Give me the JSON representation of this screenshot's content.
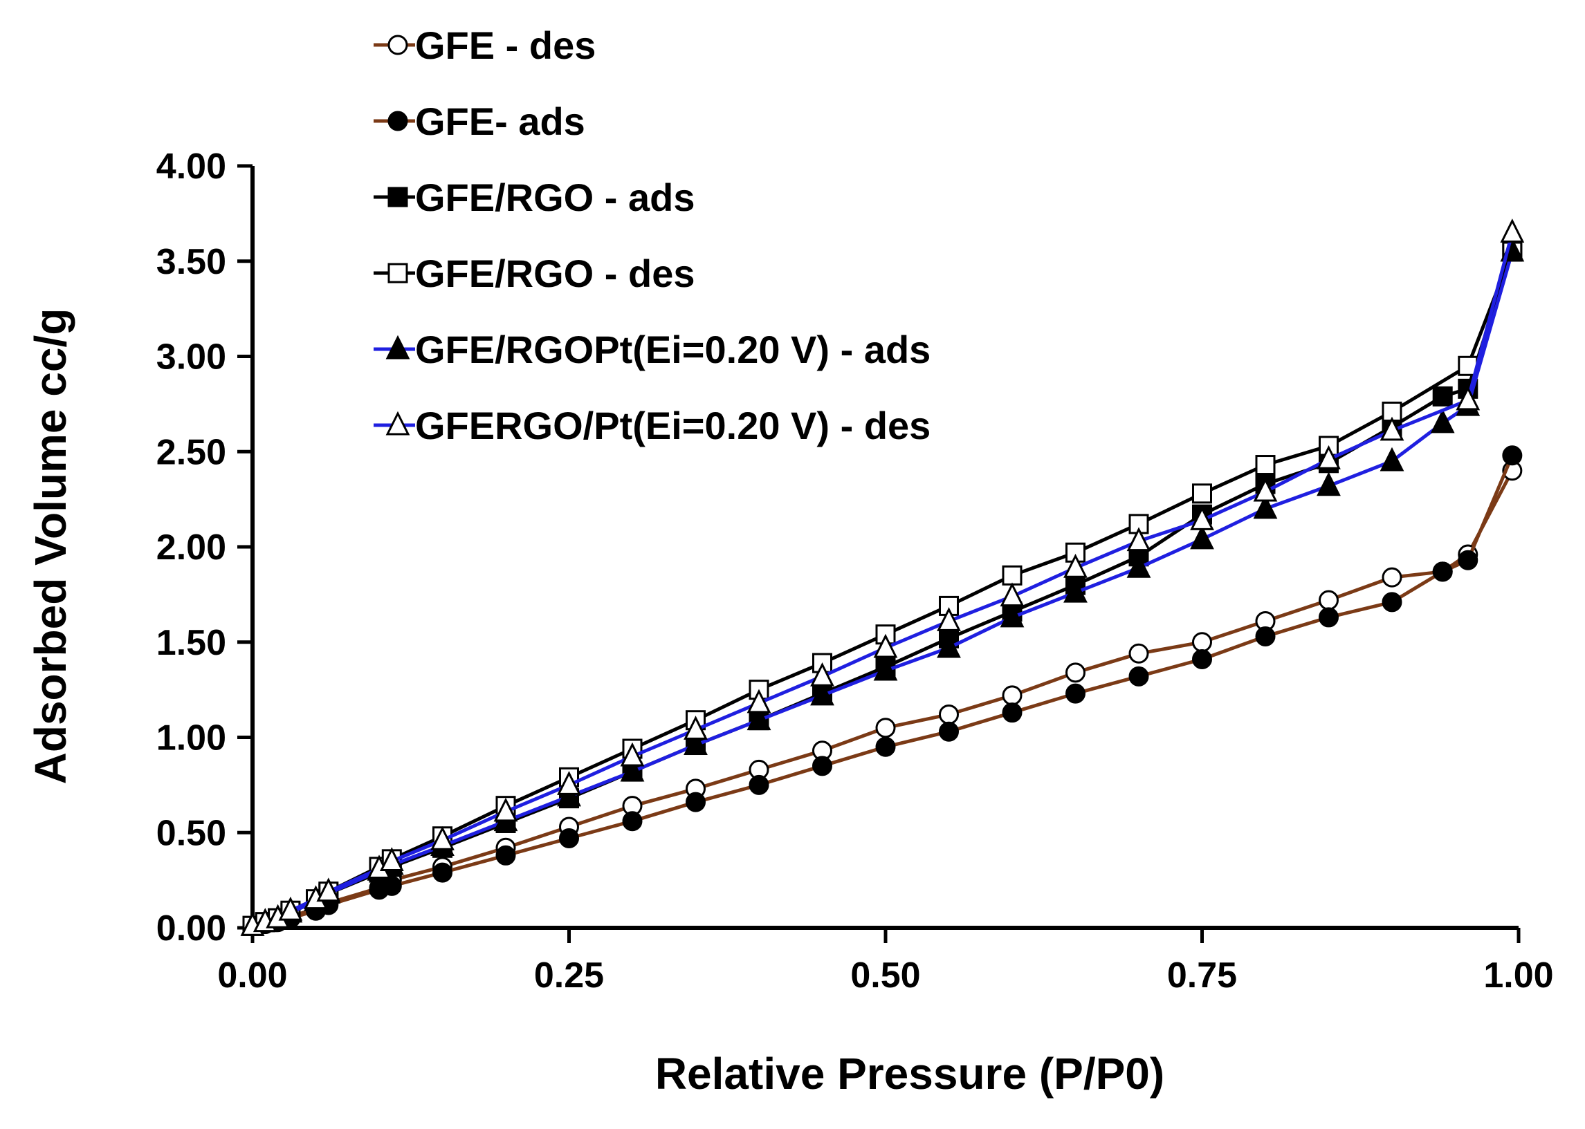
{
  "chart_data": {
    "type": "line",
    "title": "",
    "xlabel": "Relative Pressure (P/P0)",
    "ylabel": "Adsorbed Volume cc/g",
    "xlim": [
      0,
      1
    ],
    "ylim": [
      0,
      4
    ],
    "xticks": [
      "0.00",
      "0.25",
      "0.50",
      "0.75",
      "1.00"
    ],
    "yticks": [
      "0.00",
      "0.50",
      "1.00",
      "1.50",
      "2.00",
      "2.50",
      "3.00",
      "3.50",
      "4.00"
    ],
    "grid": false,
    "legend_position": "top-left",
    "series": [
      {
        "name": "GFE - des",
        "color": "#7b3a16",
        "marker": "circle-open",
        "x": [
          0.0,
          0.01,
          0.02,
          0.03,
          0.05,
          0.06,
          0.1,
          0.11,
          0.15,
          0.2,
          0.25,
          0.3,
          0.35,
          0.4,
          0.45,
          0.5,
          0.55,
          0.6,
          0.65,
          0.7,
          0.75,
          0.8,
          0.85,
          0.9,
          0.94,
          0.96,
          0.995
        ],
        "y": [
          0.01,
          0.02,
          0.04,
          0.06,
          0.1,
          0.13,
          0.21,
          0.25,
          0.32,
          0.42,
          0.53,
          0.64,
          0.73,
          0.83,
          0.93,
          1.05,
          1.12,
          1.22,
          1.34,
          1.44,
          1.5,
          1.61,
          1.72,
          1.84,
          1.87,
          1.96,
          2.4
        ]
      },
      {
        "name": "GFE- ads",
        "color": "#7b3a16",
        "marker": "circle-filled",
        "x": [
          0.0,
          0.01,
          0.02,
          0.03,
          0.05,
          0.06,
          0.1,
          0.11,
          0.15,
          0.2,
          0.25,
          0.3,
          0.35,
          0.4,
          0.45,
          0.5,
          0.55,
          0.6,
          0.65,
          0.7,
          0.75,
          0.8,
          0.85,
          0.9,
          0.94,
          0.96,
          0.995
        ],
        "y": [
          0.01,
          0.02,
          0.03,
          0.05,
          0.09,
          0.12,
          0.2,
          0.22,
          0.29,
          0.38,
          0.47,
          0.56,
          0.66,
          0.75,
          0.85,
          0.95,
          1.03,
          1.13,
          1.23,
          1.32,
          1.41,
          1.53,
          1.63,
          1.71,
          1.87,
          1.93,
          2.48
        ]
      },
      {
        "name": "GFE/RGO - ads",
        "color": "#000000",
        "marker": "square-filled",
        "x": [
          0.0,
          0.01,
          0.02,
          0.03,
          0.05,
          0.06,
          0.1,
          0.11,
          0.15,
          0.2,
          0.25,
          0.3,
          0.35,
          0.4,
          0.45,
          0.5,
          0.55,
          0.6,
          0.65,
          0.7,
          0.75,
          0.8,
          0.85,
          0.9,
          0.94,
          0.96,
          0.995
        ],
        "y": [
          0.01,
          0.03,
          0.05,
          0.08,
          0.14,
          0.18,
          0.29,
          0.32,
          0.42,
          0.55,
          0.68,
          0.82,
          0.96,
          1.09,
          1.23,
          1.37,
          1.52,
          1.66,
          1.8,
          1.95,
          2.17,
          2.33,
          2.44,
          2.63,
          2.79,
          2.83,
          3.55
        ]
      },
      {
        "name": "GFE/RGO - des",
        "color": "#000000",
        "marker": "square-open",
        "x": [
          0.0,
          0.01,
          0.02,
          0.03,
          0.05,
          0.06,
          0.1,
          0.11,
          0.15,
          0.2,
          0.25,
          0.3,
          0.35,
          0.4,
          0.45,
          0.5,
          0.55,
          0.6,
          0.65,
          0.7,
          0.75,
          0.8,
          0.85,
          0.9,
          0.96,
          0.995
        ],
        "y": [
          0.01,
          0.03,
          0.05,
          0.09,
          0.15,
          0.19,
          0.32,
          0.36,
          0.48,
          0.64,
          0.79,
          0.94,
          1.09,
          1.25,
          1.39,
          1.54,
          1.69,
          1.85,
          1.97,
          2.12,
          2.28,
          2.43,
          2.53,
          2.71,
          2.95,
          3.55
        ]
      },
      {
        "name": "GFE/RGOPt(Ei=0.20 V) - ads",
        "color": "#1f1fe0",
        "marker": "triangle-filled",
        "x": [
          0.0,
          0.01,
          0.02,
          0.03,
          0.05,
          0.06,
          0.1,
          0.11,
          0.15,
          0.2,
          0.25,
          0.3,
          0.35,
          0.4,
          0.45,
          0.5,
          0.55,
          0.6,
          0.65,
          0.7,
          0.75,
          0.8,
          0.85,
          0.9,
          0.94,
          0.96,
          0.995
        ],
        "y": [
          0.01,
          0.03,
          0.05,
          0.08,
          0.14,
          0.18,
          0.3,
          0.33,
          0.43,
          0.56,
          0.69,
          0.82,
          0.96,
          1.09,
          1.22,
          1.35,
          1.47,
          1.63,
          1.76,
          1.89,
          2.04,
          2.2,
          2.32,
          2.45,
          2.65,
          2.74,
          3.55
        ]
      },
      {
        "name": "GFERGO/Pt(Ei=0.20 V) - des",
        "color": "#1f1fe0",
        "marker": "triangle-open",
        "x": [
          0.0,
          0.01,
          0.02,
          0.03,
          0.05,
          0.06,
          0.1,
          0.11,
          0.15,
          0.2,
          0.25,
          0.3,
          0.35,
          0.4,
          0.45,
          0.5,
          0.55,
          0.6,
          0.65,
          0.7,
          0.75,
          0.8,
          0.85,
          0.9,
          0.96,
          0.995
        ],
        "y": [
          0.01,
          0.03,
          0.05,
          0.09,
          0.15,
          0.19,
          0.31,
          0.35,
          0.46,
          0.61,
          0.75,
          0.9,
          1.04,
          1.18,
          1.32,
          1.47,
          1.61,
          1.74,
          1.89,
          2.03,
          2.14,
          2.29,
          2.46,
          2.61,
          2.77,
          3.65
        ]
      }
    ]
  }
}
